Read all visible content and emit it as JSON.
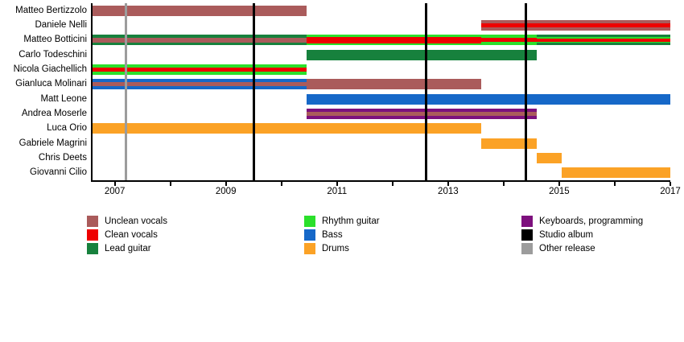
{
  "chart_data": {
    "type": "gantt",
    "title": "",
    "x_axis": {
      "min": 2006.6,
      "max": 2017,
      "tick_start": 2007,
      "tick_end": 2017,
      "tick_step": 1,
      "label_step": 2,
      "tick_labels": [
        "2007",
        "2009",
        "2011",
        "2013",
        "2015",
        "2017"
      ],
      "grid": false
    },
    "colors": {
      "unclean": "#AA5B5B",
      "clean": "#EE0000",
      "lead": "#17813D",
      "rhythm": "#2BE02B",
      "bass": "#1668C8",
      "drums": "#FBA226",
      "keys": "#7D107D",
      "studio_album": "#000000",
      "other_release": "#9C9C9C"
    },
    "rows": [
      {
        "name": "Matteo Bertizzolo",
        "segments": [
          {
            "start": 2006.6,
            "end": 2010.45,
            "stripes": [
              {
                "role": "unclean",
                "w": 1
              }
            ]
          }
        ]
      },
      {
        "name": "Daniele Nelli",
        "segments": [
          {
            "start": 2013.6,
            "end": 2017,
            "stripes": [
              {
                "role": "unclean",
                "w": 0.34
              },
              {
                "role": "clean",
                "w": 0.36
              },
              {
                "role": "unclean",
                "w": 0.3
              }
            ]
          }
        ]
      },
      {
        "name": "Matteo Botticini",
        "segments": [
          {
            "start": 2006.6,
            "end": 2010.45,
            "stripes": [
              {
                "role": "lead",
                "w": 0.28
              },
              {
                "role": "unclean",
                "w": 0.44
              },
              {
                "role": "lead",
                "w": 0.28
              }
            ]
          },
          {
            "start": 2010.45,
            "end": 2013.6,
            "stripes": [
              {
                "role": "rhythm",
                "w": 0.18
              },
              {
                "role": "clean",
                "w": 0.64
              },
              {
                "role": "rhythm",
                "w": 0.18
              }
            ]
          },
          {
            "start": 2013.6,
            "end": 2014.6,
            "stripes": [
              {
                "role": "rhythm",
                "w": 0.3
              },
              {
                "role": "clean",
                "w": 0.4
              },
              {
                "role": "rhythm",
                "w": 0.3
              }
            ]
          },
          {
            "start": 2014.6,
            "end": 2017,
            "stripes": [
              {
                "role": "lead",
                "w": 0.24
              },
              {
                "role": "rhythm",
                "w": 0.13
              },
              {
                "role": "clean",
                "w": 0.26
              },
              {
                "role": "rhythm",
                "w": 0.13
              },
              {
                "role": "lead",
                "w": 0.24
              }
            ]
          }
        ]
      },
      {
        "name": "Carlo Todeschini",
        "segments": [
          {
            "start": 2010.45,
            "end": 2014.6,
            "stripes": [
              {
                "role": "lead",
                "w": 1
              }
            ]
          }
        ]
      },
      {
        "name": "Nicola Giachellich",
        "segments": [
          {
            "start": 2006.6,
            "end": 2010.45,
            "stripes": [
              {
                "role": "rhythm",
                "w": 0.3
              },
              {
                "role": "clean",
                "w": 0.4
              },
              {
                "role": "rhythm",
                "w": 0.3
              }
            ]
          }
        ]
      },
      {
        "name": "Gianluca Molinari",
        "segments": [
          {
            "start": 2006.6,
            "end": 2010.45,
            "stripes": [
              {
                "role": "bass",
                "w": 0.3
              },
              {
                "role": "unclean",
                "w": 0.4
              },
              {
                "role": "bass",
                "w": 0.3
              }
            ]
          },
          {
            "start": 2010.45,
            "end": 2013.6,
            "stripes": [
              {
                "role": "unclean",
                "w": 1
              }
            ]
          }
        ]
      },
      {
        "name": "Matt Leone",
        "segments": [
          {
            "start": 2010.45,
            "end": 2017,
            "stripes": [
              {
                "role": "bass",
                "w": 1
              }
            ]
          }
        ]
      },
      {
        "name": "Andrea Moserle",
        "segments": [
          {
            "start": 2010.45,
            "end": 2014.6,
            "stripes": [
              {
                "role": "keys",
                "w": 0.29
              },
              {
                "role": "unclean",
                "w": 0.42
              },
              {
                "role": "keys",
                "w": 0.29
              }
            ]
          }
        ]
      },
      {
        "name": "Luca Orio",
        "segments": [
          {
            "start": 2006.6,
            "end": 2013.6,
            "stripes": [
              {
                "role": "drums",
                "w": 1
              }
            ]
          }
        ]
      },
      {
        "name": "Gabriele Magrini",
        "segments": [
          {
            "start": 2013.6,
            "end": 2014.6,
            "stripes": [
              {
                "role": "drums",
                "w": 1
              }
            ]
          }
        ]
      },
      {
        "name": "Chris Deets",
        "segments": [
          {
            "start": 2014.6,
            "end": 2015.05,
            "stripes": [
              {
                "role": "drums",
                "w": 1
              }
            ]
          }
        ]
      },
      {
        "name": "Giovanni Cilio",
        "segments": [
          {
            "start": 2015.05,
            "end": 2017,
            "stripes": [
              {
                "role": "drums",
                "w": 1
              }
            ]
          }
        ]
      }
    ],
    "events": [
      {
        "year": 2007.2,
        "type": "other_release"
      },
      {
        "year": 2009.5,
        "type": "studio_album"
      },
      {
        "year": 2012.6,
        "type": "studio_album"
      },
      {
        "year": 2014.4,
        "type": "studio_album"
      }
    ],
    "legend": {
      "columns": [
        [
          {
            "label": "Unclean vocals",
            "role": "unclean"
          },
          {
            "label": "Clean vocals",
            "role": "clean"
          },
          {
            "label": "Lead guitar",
            "role": "lead"
          }
        ],
        [
          {
            "label": "Rhythm guitar",
            "role": "rhythm"
          },
          {
            "label": "Bass",
            "role": "bass"
          },
          {
            "label": "Drums",
            "role": "drums"
          }
        ],
        [
          {
            "label": "Keyboards, programming",
            "role": "keys"
          },
          {
            "label": "Studio album",
            "role": "studio_album"
          },
          {
            "label": "Other release",
            "role": "other_release"
          }
        ]
      ]
    }
  }
}
